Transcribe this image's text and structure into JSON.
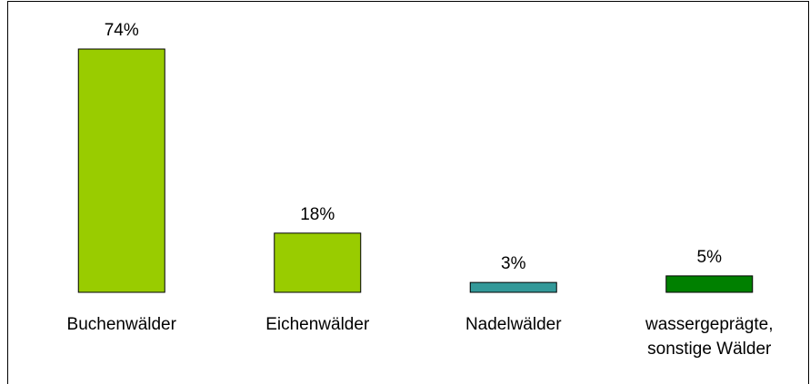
{
  "chart_data": {
    "type": "bar",
    "categories": [
      "Buchenwälder",
      "Eichenwälder",
      "Nadelwälder",
      "wassergeprägte,\nsonstige Wälder"
    ],
    "values": [
      74,
      18,
      3,
      5
    ],
    "value_labels": [
      "74%",
      "18%",
      "3%",
      "5%"
    ],
    "colors": [
      "#99cc00",
      "#99cc00",
      "#339999",
      "#008000"
    ]
  }
}
